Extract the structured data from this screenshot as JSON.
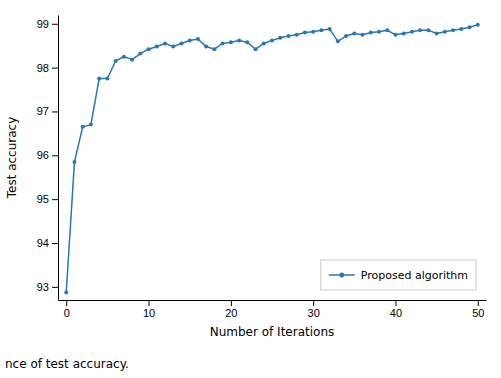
{
  "chart_data": {
    "type": "line",
    "xlabel": "Number of Iterations",
    "ylabel": "Test accuracy",
    "x": [
      0,
      1,
      2,
      3,
      4,
      5,
      6,
      7,
      8,
      9,
      10,
      11,
      12,
      13,
      14,
      15,
      16,
      17,
      18,
      19,
      20,
      21,
      22,
      23,
      24,
      25,
      26,
      27,
      28,
      29,
      30,
      31,
      32,
      33,
      34,
      35,
      36,
      37,
      38,
      39,
      40,
      41,
      42,
      43,
      44,
      45,
      46,
      47,
      48,
      49,
      50
    ],
    "series": [
      {
        "name": "Proposed algorithm",
        "color": "#2878b5",
        "marker": "circle",
        "values": [
          92.87,
          95.85,
          96.65,
          96.7,
          97.75,
          97.75,
          98.15,
          98.25,
          98.18,
          98.32,
          98.42,
          98.48,
          98.55,
          98.48,
          98.55,
          98.62,
          98.65,
          98.48,
          98.42,
          98.55,
          98.58,
          98.62,
          98.58,
          98.42,
          98.55,
          98.62,
          98.68,
          98.72,
          98.75,
          98.8,
          98.82,
          98.85,
          98.88,
          98.6,
          98.72,
          98.78,
          98.75,
          98.8,
          98.82,
          98.85,
          98.75,
          98.78,
          98.82,
          98.85,
          98.85,
          98.78,
          98.82,
          98.85,
          98.88,
          98.92,
          98.98
        ]
      }
    ],
    "xlim": [
      -1,
      51
    ],
    "ylim": [
      92.7,
      99.2
    ],
    "xticks": [
      0,
      10,
      20,
      30,
      40,
      50
    ],
    "yticks": [
      93,
      94,
      95,
      96,
      97,
      98,
      99
    ],
    "legend": "lower right",
    "grid": false,
    "annotations": [
      "nce of test accuracy."
    ]
  }
}
